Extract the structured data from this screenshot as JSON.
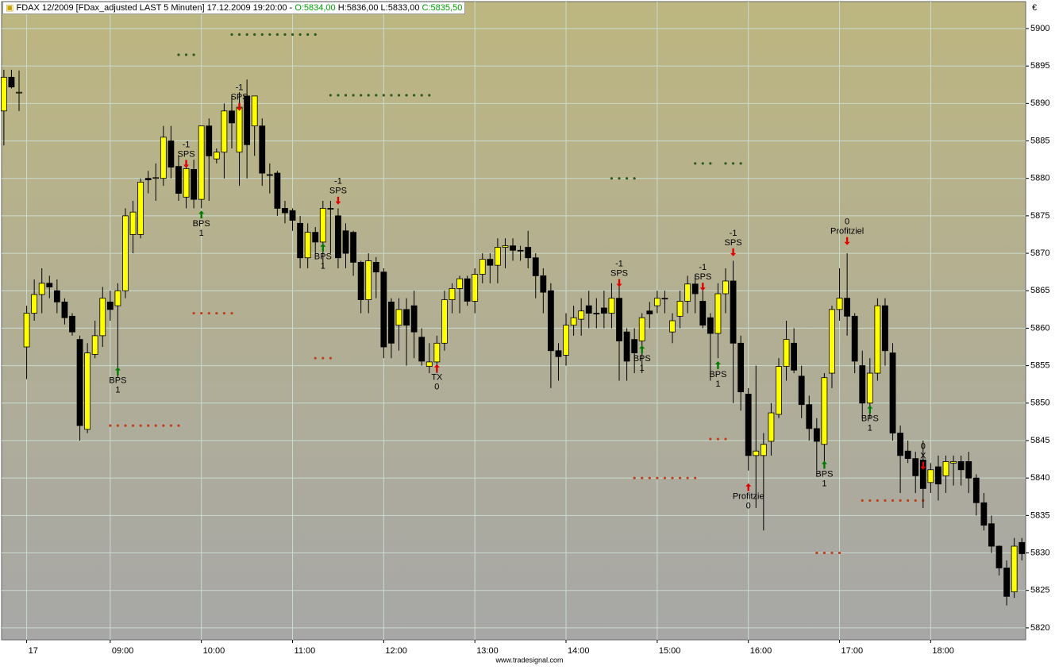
{
  "chart_data": {
    "type": "candlestick",
    "header": {
      "title": "FDAX 12/2009 [FDax_adjusted LAST 5 Minuten] 17.12.2009 19:20:00 -",
      "open": "O:5834,00",
      "high_low": "H:5836,00 L:5833,00",
      "close": "C:5835,50"
    },
    "currency": "€",
    "footer": "www.tradesignal.com",
    "up_color": "#ffff00",
    "down_color": "#000000",
    "grid": true,
    "ylim": [
      5818.4,
      5903.6
    ],
    "yticks": [
      5820,
      5825,
      5830,
      5835,
      5840,
      5845,
      5850,
      5855,
      5860,
      5865,
      5870,
      5875,
      5880,
      5885,
      5890,
      5895,
      5900
    ],
    "xlim": [
      -0.3,
      134.5
    ],
    "xticks": [
      {
        "value": 3,
        "label": "17"
      },
      {
        "value": 14,
        "label": "09:00"
      },
      {
        "value": 26,
        "label": "10:00"
      },
      {
        "value": 38,
        "label": "11:00"
      },
      {
        "value": 50,
        "label": "12:00"
      },
      {
        "value": 62,
        "label": "13:00"
      },
      {
        "value": 74,
        "label": "14:00"
      },
      {
        "value": 86,
        "label": "15:00"
      },
      {
        "value": 98,
        "label": "16:00"
      },
      {
        "value": 110,
        "label": "17:00"
      },
      {
        "value": 122,
        "label": "18:00"
      }
    ],
    "ohlc": [
      [
        5889,
        5894.5,
        5884.4,
        5893.5
      ],
      [
        5893.5,
        5894.5,
        5892,
        5892.2
      ],
      [
        5891.5,
        5894.4,
        5889,
        5891.5
      ],
      [
        5857.5,
        5863,
        5853.2,
        5862
      ],
      [
        5862,
        5866.5,
        5861,
        5864.5
      ],
      [
        5864.5,
        5868,
        5862,
        5866
      ],
      [
        5866,
        5867,
        5864,
        5865.5
      ],
      [
        5865,
        5866.5,
        5862,
        5863.5
      ],
      [
        5863.5,
        5864,
        5860.5,
        5861.4
      ],
      [
        5861.6,
        5862,
        5859,
        5859.5
      ],
      [
        5858.5,
        5859,
        5845,
        5847
      ],
      [
        5846.5,
        5858,
        5846,
        5856.7
      ],
      [
        5856.5,
        5861,
        5856,
        5859
      ],
      [
        5859,
        5865.5,
        5857.5,
        5864
      ],
      [
        5863.5,
        5865,
        5861,
        5862.5
      ],
      [
        5863,
        5866,
        5853.5,
        5865
      ],
      [
        5865,
        5876,
        5864,
        5875
      ],
      [
        5872.5,
        5877,
        5870,
        5875.5
      ],
      [
        5872.5,
        5880,
        5872,
        5879.5
      ],
      [
        5880,
        5881,
        5878,
        5879.8
      ],
      [
        5880,
        5882,
        5877,
        5880.1
      ],
      [
        5880,
        5887,
        5879,
        5885.5
      ],
      [
        5885,
        5887,
        5880,
        5881.5
      ],
      [
        5881.6,
        5883,
        5877,
        5878
      ],
      [
        5877.5,
        5882,
        5876,
        5881.3
      ],
      [
        5881.2,
        5882.5,
        5876,
        5877.2
      ],
      [
        5877.2,
        5887,
        5876,
        5887
      ],
      [
        5887,
        5888,
        5877,
        5883
      ],
      [
        5882.6,
        5884,
        5882,
        5883.5
      ],
      [
        5883.5,
        5890,
        5880,
        5889
      ],
      [
        5889,
        5891,
        5884,
        5887.4
      ],
      [
        5883.5,
        5891.5,
        5879,
        5889.5
      ],
      [
        5891,
        5893.2,
        5880,
        5884.5
      ],
      [
        5887,
        5891,
        5883,
        5891
      ],
      [
        5887,
        5888,
        5879,
        5880.7
      ],
      [
        5880.5,
        5882,
        5878,
        5880.4
      ],
      [
        5880.7,
        5881,
        5875,
        5876
      ],
      [
        5876,
        5877,
        5874,
        5875.4
      ],
      [
        5875.7,
        5876,
        5873,
        5874.4
      ],
      [
        5874,
        5875,
        5868,
        5869.4
      ],
      [
        5869.4,
        5874,
        5868,
        5872.8
      ],
      [
        5872.8,
        5873.5,
        5870,
        5871.5
      ],
      [
        5871.5,
        5877,
        5868,
        5876
      ],
      [
        5876,
        5877,
        5870,
        5875.9
      ],
      [
        5875,
        5876,
        5868,
        5869.4
      ],
      [
        5873,
        5874,
        5868,
        5870
      ],
      [
        5872.8,
        5873,
        5867,
        5868.8
      ],
      [
        5868.8,
        5869,
        5862,
        5863.8
      ],
      [
        5863.8,
        5870,
        5862,
        5869
      ],
      [
        5868.8,
        5869.5,
        5864,
        5867.5
      ],
      [
        5867.5,
        5868,
        5856,
        5857.5
      ],
      [
        5863.5,
        5864,
        5856,
        5858
      ],
      [
        5860.4,
        5864,
        5857,
        5862.5
      ],
      [
        5862.5,
        5864,
        5855,
        5860.4
      ],
      [
        5863,
        5865,
        5856,
        5859.5
      ],
      [
        5858.8,
        5860,
        5855,
        5855.6
      ],
      [
        5854.9,
        5858,
        5854,
        5855.5
      ],
      [
        5855.5,
        5859,
        5854,
        5858
      ],
      [
        5858,
        5865,
        5857,
        5863.8
      ],
      [
        5863.8,
        5866,
        5862,
        5865.3
      ],
      [
        5865.3,
        5867,
        5862,
        5866.6
      ],
      [
        5866.6,
        5867,
        5863,
        5863.6
      ],
      [
        5863.6,
        5868,
        5862,
        5867.2
      ],
      [
        5867.2,
        5870,
        5866,
        5869.2
      ],
      [
        5869.2,
        5870,
        5866,
        5868.4
      ],
      [
        5868.4,
        5872,
        5866,
        5870.8
      ],
      [
        5870.8,
        5872,
        5868,
        5871
      ],
      [
        5871,
        5872,
        5869,
        5870.4
      ],
      [
        5870.4,
        5871,
        5869,
        5870.3
      ],
      [
        5870.8,
        5873,
        5868,
        5869.4
      ],
      [
        5869.4,
        5870,
        5864,
        5867
      ],
      [
        5867,
        5868,
        5862,
        5864.8
      ],
      [
        5865,
        5866,
        5852,
        5857
      ],
      [
        5857,
        5858,
        5853,
        5856.2
      ],
      [
        5856.4,
        5862,
        5855,
        5860.4
      ],
      [
        5860.4,
        5863,
        5859,
        5861.4
      ],
      [
        5861.2,
        5864,
        5859,
        5862.3
      ],
      [
        5863,
        5865,
        5860,
        5862
      ],
      [
        5862,
        5864,
        5860,
        5861.9
      ],
      [
        5862.7,
        5865,
        5860,
        5862
      ],
      [
        5862,
        5866,
        5860,
        5864
      ],
      [
        5864,
        5866,
        5853,
        5858.3
      ],
      [
        5859.5,
        5860,
        5853,
        5855.6
      ],
      [
        5858.5,
        5860,
        5854,
        5856.7
      ],
      [
        5858.3,
        5862,
        5854,
        5861.4
      ],
      [
        5862.3,
        5863.5,
        5860,
        5861.9
      ],
      [
        5863,
        5865,
        5862,
        5864
      ],
      [
        5864,
        5865,
        5862,
        5863.9
      ],
      [
        5859.5,
        5862,
        5858,
        5861
      ],
      [
        5861.6,
        5865,
        5860,
        5863.6
      ],
      [
        5863.6,
        5867,
        5862,
        5865.9
      ],
      [
        5865.9,
        5867,
        5862,
        5864.6
      ],
      [
        5863.6,
        5866,
        5860,
        5860.4
      ],
      [
        5861.4,
        5862,
        5853,
        5859.3
      ],
      [
        5859.3,
        5866,
        5856,
        5864.6
      ],
      [
        5864.6,
        5868,
        5862,
        5866.3
      ],
      [
        5866.3,
        5869,
        5850,
        5858
      ],
      [
        5858,
        5859,
        5849,
        5851.5
      ],
      [
        5851.2,
        5852,
        5841,
        5843
      ],
      [
        5843,
        5855,
        5836,
        5843.6
      ],
      [
        5843,
        5846,
        5833,
        5844.5
      ],
      [
        5844.9,
        5850,
        5843,
        5848.7
      ],
      [
        5848.5,
        5856,
        5848,
        5854.9
      ],
      [
        5854.9,
        5861,
        5853,
        5858.5
      ],
      [
        5858,
        5860,
        5854,
        5854.4
      ],
      [
        5853.6,
        5855,
        5848,
        5849.8
      ],
      [
        5849.8,
        5851,
        5845,
        5846.6
      ],
      [
        5846.6,
        5848,
        5841,
        5844.9
      ],
      [
        5844.5,
        5854,
        5842,
        5853.4
      ],
      [
        5854,
        5863,
        5852,
        5862.5
      ],
      [
        5862.5,
        5868,
        5861,
        5864
      ],
      [
        5864,
        5870,
        5859,
        5861.6
      ],
      [
        5861.6,
        5862,
        5854,
        5855.6
      ],
      [
        5855,
        5857,
        5848,
        5850
      ],
      [
        5850,
        5856,
        5848,
        5854
      ],
      [
        5854,
        5864,
        5853,
        5863
      ],
      [
        5863,
        5864,
        5855,
        5857
      ],
      [
        5856.7,
        5858,
        5845,
        5846
      ],
      [
        5846,
        5847,
        5838,
        5843
      ],
      [
        5843.6,
        5845,
        5842,
        5842.6
      ],
      [
        5842.6,
        5843.5,
        5838,
        5840.3
      ],
      [
        5842.4,
        5845,
        5836,
        5838.6
      ],
      [
        5839.4,
        5842,
        5838,
        5841.1
      ],
      [
        5841.5,
        5843,
        5837,
        5839.2
      ],
      [
        5840.3,
        5843,
        5838,
        5842.2
      ],
      [
        5842,
        5843,
        5839,
        5842.2
      ],
      [
        5842.2,
        5843,
        5839,
        5841.1
      ],
      [
        5842.2,
        5843.5,
        5838,
        5840
      ],
      [
        5840,
        5840.5,
        5835,
        5836.7
      ],
      [
        5836.7,
        5838,
        5833,
        5833.7
      ],
      [
        5833.9,
        5835,
        5830,
        5830.9
      ],
      [
        5830.9,
        5831,
        5827,
        5828
      ],
      [
        5828,
        5829,
        5823,
        5824.2
      ],
      [
        5824.8,
        5832,
        5824,
        5830.9
      ],
      [
        5831.4,
        5832,
        5829,
        5829.9
      ]
    ],
    "stop_levels": [
      {
        "color": "#2d5a1e",
        "segments": [
          {
            "from": 23,
            "to": 25,
            "value": 5896.5
          },
          {
            "from": 30,
            "to": 41,
            "value": 5899.2
          },
          {
            "from": 43,
            "to": 56,
            "value": 5891.1
          },
          {
            "from": 80,
            "to": 83,
            "value": 5880
          },
          {
            "from": 91,
            "to": 93,
            "value": 5882
          },
          {
            "from": 95,
            "to": 97,
            "value": 5882
          }
        ]
      },
      {
        "color": "#c0401a",
        "segments": [
          {
            "from": 14,
            "to": 23,
            "value": 5847
          },
          {
            "from": 25,
            "to": 30,
            "value": 5862
          },
          {
            "from": 41,
            "to": 43,
            "value": 5856
          },
          {
            "from": 93,
            "to": 95,
            "value": 5845.2
          },
          {
            "from": 83,
            "to": 91,
            "value": 5840
          },
          {
            "from": 107,
            "to": 110,
            "value": 5830
          },
          {
            "from": 113,
            "to": 121,
            "value": 5837
          }
        ]
      }
    ],
    "signals": [
      {
        "bar": 15,
        "price": 5854.8,
        "side": "buy",
        "label": "BPS",
        "qty": 1,
        "color": "#007a00"
      },
      {
        "bar": 24,
        "price": 5881.4,
        "side": "sell",
        "label": "SPS",
        "qty": -1,
        "color": "#e00000"
      },
      {
        "bar": 26,
        "price": 5875.7,
        "side": "buy",
        "label": "BPS",
        "qty": 1,
        "color": "#007a00"
      },
      {
        "bar": 31,
        "price": 5889,
        "side": "sell",
        "label": "SPS",
        "qty": -1,
        "color": "#e00000"
      },
      {
        "bar": 42,
        "price": 5871.3,
        "side": "buy",
        "label": "BPS",
        "qty": 1,
        "color": "#007a00"
      },
      {
        "bar": 44,
        "price": 5876.5,
        "side": "sell",
        "label": "SPS",
        "qty": -1,
        "color": "#e00000"
      },
      {
        "bar": 57,
        "price": 5855.2,
        "side": "buy",
        "label": "TX",
        "qty": 0,
        "color": "#e00000"
      },
      {
        "bar": 81,
        "price": 5865.5,
        "side": "sell",
        "label": "SPS",
        "qty": -1,
        "color": "#e00000"
      },
      {
        "bar": 84,
        "price": 5857.7,
        "side": "buy",
        "label": "BPS",
        "qty": 1,
        "color": "#007a00"
      },
      {
        "bar": 92,
        "price": 5865,
        "side": "sell",
        "label": "SPS",
        "qty": -1,
        "color": "#e00000"
      },
      {
        "bar": 94,
        "price": 5855.6,
        "side": "buy",
        "label": "BPS",
        "qty": 1,
        "color": "#007a00"
      },
      {
        "bar": 96,
        "price": 5869.6,
        "side": "sell",
        "label": "SPS",
        "qty": -1,
        "color": "#e00000"
      },
      {
        "bar": 98,
        "price": 5839.3,
        "side": "buy",
        "label": "Profitzie",
        "qty": 0,
        "color": "#e00000"
      },
      {
        "bar": 108,
        "price": 5842.3,
        "side": "buy",
        "label": "BPS",
        "qty": 1,
        "color": "#007a00"
      },
      {
        "bar": 111,
        "price": 5871.1,
        "side": "sell",
        "label": "Profitziel",
        "qty": 0,
        "color": "#e00000"
      },
      {
        "bar": 114,
        "price": 5849.7,
        "side": "buy",
        "label": "BPS",
        "qty": 1,
        "color": "#007a00"
      },
      {
        "bar": 121,
        "price": 5841.1,
        "side": "sell",
        "label": "X",
        "qty": 0,
        "color": "#e00000"
      }
    ]
  }
}
